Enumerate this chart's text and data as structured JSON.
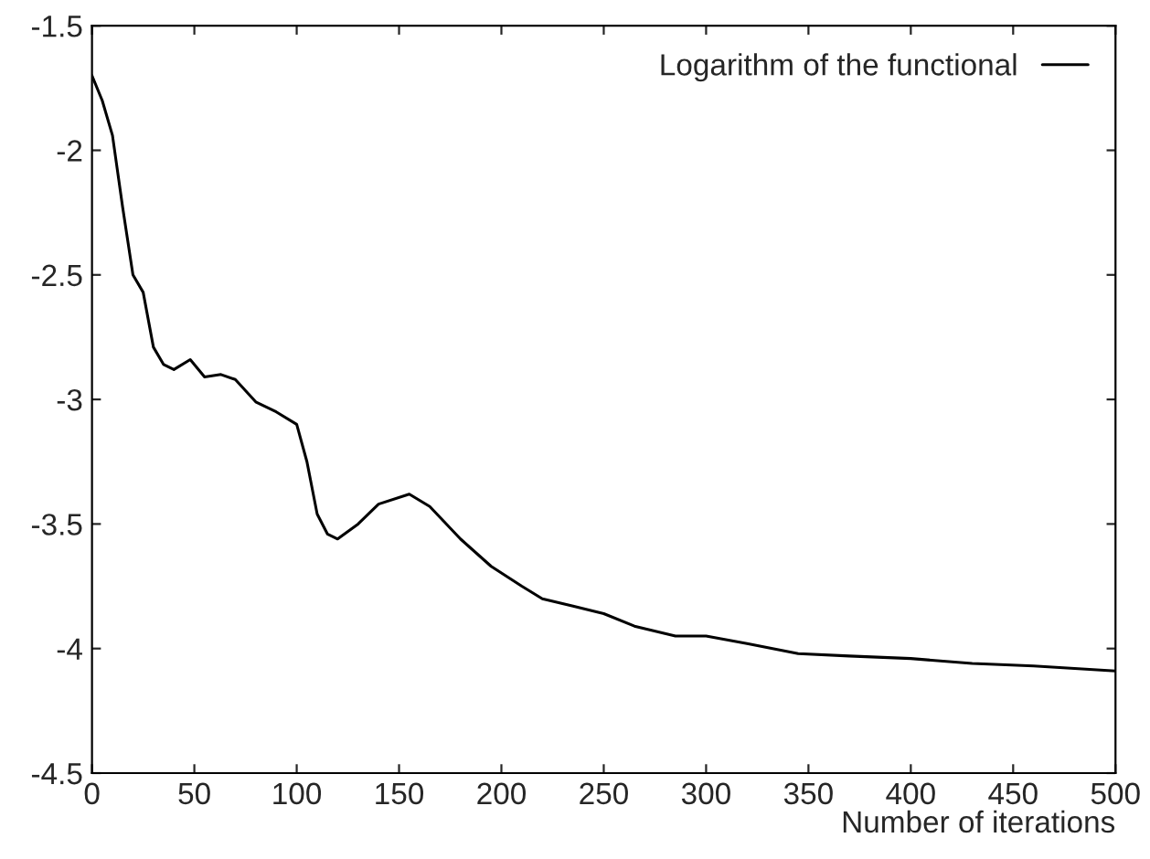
{
  "chart_data": {
    "type": "line",
    "xlabel": "Number of iterations",
    "x": [
      0,
      5,
      10,
      15,
      20,
      25,
      30,
      35,
      40,
      48,
      55,
      63,
      70,
      80,
      90,
      100,
      105,
      110,
      115,
      120,
      130,
      140,
      155,
      165,
      180,
      195,
      210,
      220,
      235,
      250,
      265,
      285,
      300,
      320,
      345,
      370,
      400,
      430,
      460,
      500
    ],
    "series": [
      {
        "name": "Logarithm of the functional",
        "color": "#000000",
        "values": [
          -1.7,
          -1.8,
          -1.94,
          -2.23,
          -2.5,
          -2.57,
          -2.79,
          -2.86,
          -2.88,
          -2.84,
          -2.91,
          -2.9,
          -2.92,
          -3.01,
          -3.05,
          -3.1,
          -3.25,
          -3.46,
          -3.54,
          -3.56,
          -3.5,
          -3.42,
          -3.38,
          -3.43,
          -3.56,
          -3.67,
          -3.75,
          -3.8,
          -3.83,
          -3.86,
          -3.91,
          -3.95,
          -3.95,
          -3.98,
          -4.02,
          -4.03,
          -4.04,
          -4.06,
          -4.07,
          -4.09
        ]
      }
    ],
    "xlim": [
      0,
      500
    ],
    "ylim": [
      -4.5,
      -1.5
    ],
    "xticks": [
      0,
      50,
      100,
      150,
      200,
      250,
      300,
      350,
      400,
      450,
      500
    ],
    "yticks": [
      -4.5,
      -4,
      -3.5,
      -3,
      -2.5,
      -2,
      -1.5
    ],
    "grid": false,
    "legend": "top right",
    "marker": "none",
    "line_style": "solid"
  }
}
